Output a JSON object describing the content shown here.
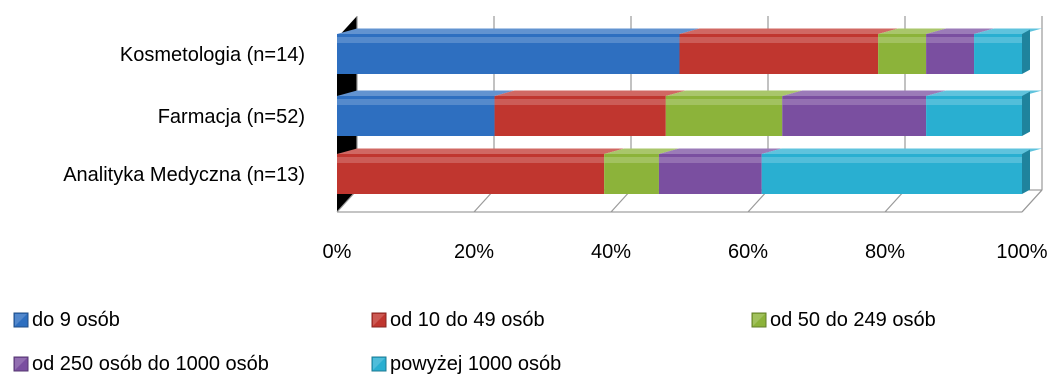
{
  "chart_data": {
    "type": "bar",
    "orientation": "horizontal",
    "stacked": "percent",
    "style": "3d",
    "categories": [
      "Kosmetologia (n=14)",
      "Farmacja (n=52)",
      "Analityka Medyczna (n=13)"
    ],
    "series": [
      {
        "name": "do 9 osób",
        "color": "#2e6fc0",
        "values": [
          50,
          23,
          0
        ]
      },
      {
        "name": "od 10 do 49 osób",
        "color": "#c0362f",
        "values": [
          29,
          25,
          39
        ]
      },
      {
        "name": "od 50 do 249 osób",
        "color": "#8cb33a",
        "values": [
          7,
          17,
          8
        ]
      },
      {
        "name": "od  250 osób do 1000 osób",
        "color": "#7a4fa0",
        "values": [
          7,
          21,
          15
        ]
      },
      {
        "name": "powyżej 1000 osób",
        "color": "#29afd1",
        "values": [
          7,
          14,
          38
        ]
      }
    ],
    "x_ticks": [
      "0%",
      "20%",
      "40%",
      "60%",
      "80%",
      "100%"
    ],
    "xlim": [
      0,
      100
    ],
    "grid": true,
    "legend_position": "bottom"
  }
}
